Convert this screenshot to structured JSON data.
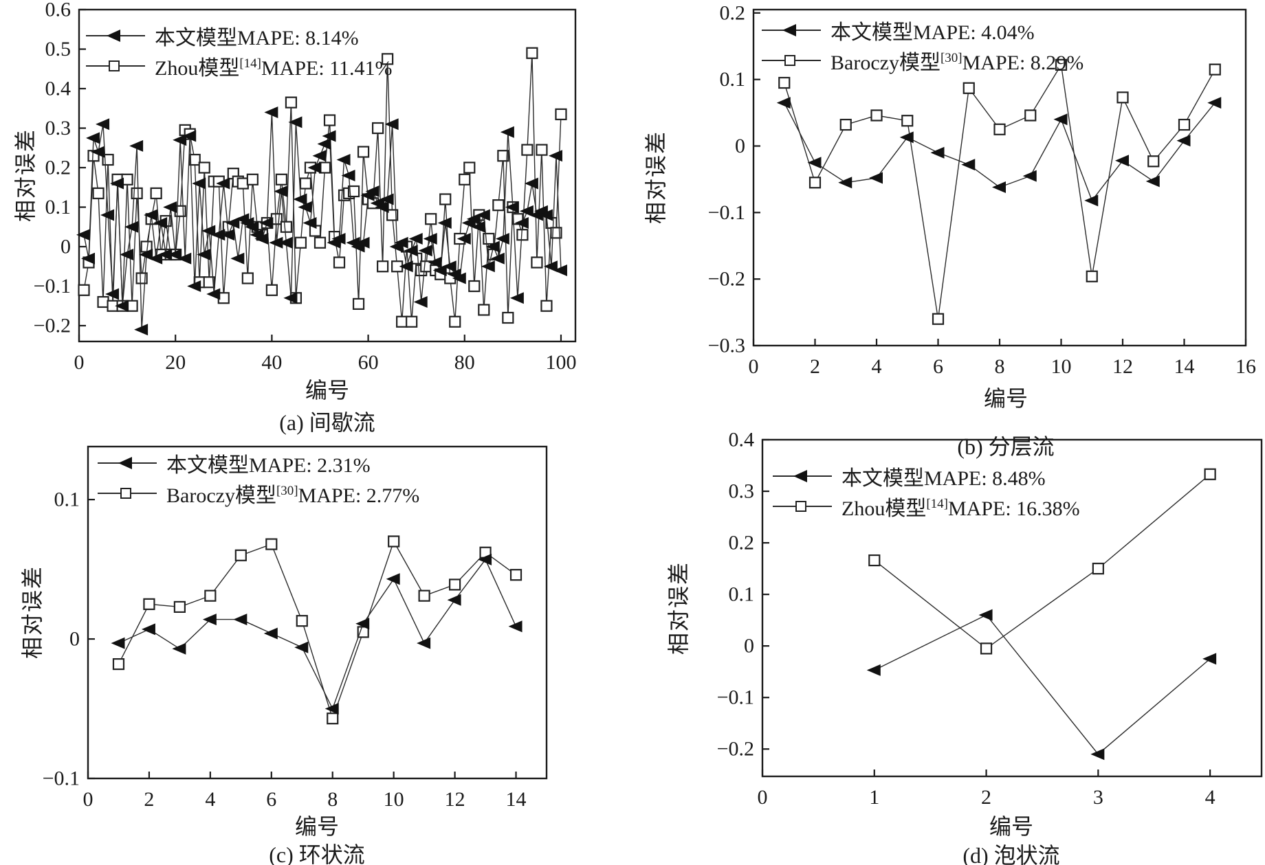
{
  "figure": {
    "bg": "#ffffff",
    "ink": "#1a1a1a",
    "line_color": "#2a2a2a"
  },
  "chart_data": [
    {
      "id": "a",
      "type": "line",
      "caption": "(a) 间歇流",
      "xlabel": "编号",
      "ylabel": "相对误差",
      "xlim": [
        0,
        103
      ],
      "ylim": [
        -0.24,
        0.6
      ],
      "xticks": [
        0,
        20,
        40,
        60,
        80,
        100
      ],
      "yticks": [
        0.6,
        0.5,
        0.4,
        0.3,
        0.2,
        0.1,
        0,
        -0.1,
        -0.2
      ],
      "x_start": 1,
      "grid": false,
      "legend_position": "top-left",
      "series": [
        {
          "legend_pre": "本文模型MAPE: 8.14%",
          "legend_sup": "",
          "legend_post": "",
          "marker": "triangle",
          "values": [
            0.03,
            -0.03,
            0.275,
            0.24,
            0.31,
            0.08,
            -0.12,
            0.16,
            -0.15,
            -0.02,
            0.05,
            0.255,
            -0.21,
            -0.02,
            0.08,
            -0.03,
            0.06,
            -0.02,
            0.1,
            -0.02,
            0.27,
            -0.03,
            0.28,
            -0.1,
            0.16,
            -0.02,
            0.04,
            -0.12,
            0.03,
            0.16,
            0.03,
            0.06,
            -0.03,
            0.07,
            0.06,
            0.05,
            0.03,
            0.02,
            0.06,
            0.34,
            0.01,
            0.14,
            0.01,
            -0.13,
            0.315,
            0.12,
            0.1,
            0.06,
            0.2,
            0.23,
            0.26,
            0.28,
            0.01,
            0.02,
            0.22,
            0.18,
            0.01,
            0.0,
            0.01,
            0.13,
            0.14,
            0.11,
            0.1,
            0.12,
            0.31,
            0.0,
            0.01,
            -0.05,
            -0.01,
            0.02,
            -0.14,
            -0.01,
            0.02,
            -0.04,
            -0.06,
            0.06,
            -0.05,
            -0.07,
            -0.08,
            0.02,
            0.06,
            0.07,
            0.05,
            0.08,
            -0.05,
            0.0,
            -0.03,
            0.02,
            0.29,
            0.1,
            -0.13,
            0.06,
            0.09,
            0.16,
            0.08,
            0.09,
            0.08,
            -0.05,
            0.23,
            -0.06
          ]
        },
        {
          "legend_pre": "Zhou模型",
          "legend_sup": "[14]",
          "legend_post": "MAPE: 11.41%",
          "marker": "square",
          "values": [
            -0.11,
            -0.04,
            0.23,
            0.135,
            -0.14,
            0.22,
            -0.15,
            0.17,
            -0.15,
            0.17,
            -0.15,
            0.135,
            -0.08,
            0.0,
            0.07,
            0.135,
            -0.02,
            0.065,
            -0.02,
            -0.02,
            0.09,
            0.295,
            0.285,
            0.22,
            -0.09,
            0.2,
            -0.09,
            0.165,
            0.165,
            -0.13,
            0.05,
            0.185,
            0.165,
            0.16,
            -0.08,
            0.17,
            0.05,
            0.03,
            0.06,
            -0.11,
            0.07,
            0.17,
            0.05,
            0.365,
            -0.13,
            0.01,
            0.16,
            0.2,
            0.04,
            0.01,
            0.2,
            0.32,
            0.025,
            -0.04,
            0.13,
            0.135,
            0.14,
            -0.145,
            0.24,
            0.12,
            0.11,
            0.3,
            -0.05,
            0.475,
            0.08,
            -0.05,
            -0.19,
            0.0,
            -0.19,
            -0.03,
            -0.06,
            -0.05,
            0.07,
            -0.06,
            -0.07,
            0.12,
            -0.08,
            -0.19,
            0.02,
            0.17,
            0.2,
            -0.1,
            0.08,
            -0.16,
            0.02,
            -0.02,
            0.105,
            0.23,
            -0.18,
            0.1,
            0.07,
            0.03,
            0.245,
            0.49,
            -0.04,
            0.245,
            -0.15,
            0.06,
            0.035,
            0.335
          ]
        }
      ]
    },
    {
      "id": "b",
      "type": "line",
      "caption": "(b) 分层流",
      "xlabel": "编号",
      "ylabel": "相对误差",
      "xlim": [
        0,
        16
      ],
      "ylim": [
        -0.3,
        0.205
      ],
      "xticks": [
        0,
        2,
        4,
        6,
        8,
        10,
        12,
        14,
        16
      ],
      "yticks": [
        0.2,
        0.1,
        0,
        -0.1,
        -0.2,
        -0.3
      ],
      "x_start": 1,
      "grid": false,
      "legend_position": "top-left",
      "series": [
        {
          "legend_pre": "本文模型MAPE: 4.04%",
          "legend_sup": "",
          "legend_post": "",
          "marker": "triangle",
          "values": [
            0.065,
            -0.025,
            -0.055,
            -0.048,
            0.013,
            -0.01,
            -0.028,
            -0.062,
            -0.045,
            0.04,
            -0.082,
            -0.022,
            -0.053,
            0.008,
            0.065
          ]
        },
        {
          "legend_pre": "Baroczy模型",
          "legend_sup": "[30]",
          "legend_post": "MAPE: 8.29%",
          "marker": "square",
          "values": [
            0.095,
            -0.055,
            0.032,
            0.046,
            0.038,
            -0.26,
            0.087,
            0.025,
            0.046,
            0.122,
            -0.196,
            0.073,
            -0.023,
            0.032,
            0.115
          ]
        }
      ]
    },
    {
      "id": "c",
      "type": "line",
      "caption": "(c) 环状流",
      "xlabel": "编号",
      "ylabel": "相对误差",
      "xlim": [
        0,
        15
      ],
      "ylim": [
        -0.1,
        0.138
      ],
      "xticks": [
        0,
        2,
        4,
        6,
        8,
        10,
        12,
        14
      ],
      "yticks": [
        0.1,
        0,
        -0.1
      ],
      "x_start": 1,
      "grid": false,
      "legend_position": "top-left",
      "series": [
        {
          "legend_pre": "本文模型MAPE: 2.31%",
          "legend_sup": "",
          "legend_post": "",
          "marker": "triangle",
          "values": [
            -0.003,
            0.007,
            -0.007,
            0.014,
            0.014,
            0.004,
            -0.006,
            -0.05,
            0.011,
            0.043,
            -0.003,
            0.028,
            0.057,
            0.009
          ]
        },
        {
          "legend_pre": "Baroczy模型",
          "legend_sup": "[30]",
          "legend_post": "MAPE: 2.77%",
          "marker": "square",
          "values": [
            -0.018,
            0.025,
            0.023,
            0.031,
            0.06,
            0.068,
            0.013,
            -0.057,
            0.005,
            0.07,
            0.031,
            0.039,
            0.062,
            0.046
          ]
        }
      ]
    },
    {
      "id": "d",
      "type": "line",
      "caption": "(d) 泡状流",
      "xlabel": "编号",
      "ylabel": "相对误差",
      "xlim": [
        0,
        4.46
      ],
      "ylim": [
        -0.253,
        0.4
      ],
      "xticks": [
        0,
        1,
        2,
        3,
        4
      ],
      "yticks": [
        0.4,
        0.3,
        0.2,
        0.1,
        0,
        -0.1,
        -0.2
      ],
      "x_start": 1,
      "grid": false,
      "legend_position": "top-left",
      "series": [
        {
          "legend_pre": "本文模型MAPE: 8.48%",
          "legend_sup": "",
          "legend_post": "",
          "marker": "triangle",
          "values": [
            -0.047,
            0.06,
            -0.21,
            -0.025
          ]
        },
        {
          "legend_pre": "Zhou模型",
          "legend_sup": "[14]",
          "legend_post": "MAPE: 16.38%",
          "marker": "square",
          "values": [
            0.166,
            -0.005,
            0.15,
            0.333
          ]
        }
      ]
    }
  ]
}
